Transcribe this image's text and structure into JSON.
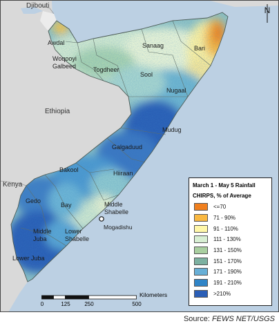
{
  "map": {
    "countries": [
      "Djibouti",
      "Ethiopia",
      "Kenya"
    ],
    "capital": "Mogadishu",
    "regions": [
      "Awdal",
      "Woqooyi Galbeed",
      "Togdheer",
      "Sanaag",
      "Bari",
      "Sool",
      "Nugaal",
      "Mudug",
      "Galgaduud",
      "Hiiraan",
      "Bakool",
      "Gedo",
      "Bay",
      "Middle Shabelle",
      "Lower Shabelle",
      "Middle Juba",
      "Lower Juba"
    ],
    "region_label_lines": {
      "woqooyi": [
        "Woqooyi",
        "Galbeed"
      ],
      "middle_shabelle": [
        "Middle",
        "Shabelle"
      ],
      "lower_shabelle": [
        "Lower",
        "Shabelle"
      ],
      "middle_juba": [
        "Middle",
        "Juba"
      ]
    }
  },
  "legend": {
    "title": "March 1 - May 5 Rainfall",
    "subtitle": "CHIRPS, % of Average",
    "classes": [
      {
        "label": "<=70",
        "color": "#f07f1e"
      },
      {
        "label": "71 - 90%",
        "color": "#f9b841"
      },
      {
        "label": "91 - 110%",
        "color": "#fff7a8"
      },
      {
        "label": "111 - 130%",
        "color": "#d8efd3"
      },
      {
        "label": "131 - 150%",
        "color": "#a9cfa0"
      },
      {
        "label": "151 - 170%",
        "color": "#7db1a1"
      },
      {
        "label": "171 - 190%",
        "color": "#68afd6"
      },
      {
        "label": "191 - 210%",
        "color": "#2f84c7"
      },
      {
        "label": ">210%",
        "color": "#2a5eb6"
      }
    ]
  },
  "scale": {
    "ticks": [
      "0",
      "125",
      "250",
      "500"
    ],
    "unit": "Kilometers"
  },
  "north_arrow": "N",
  "source": {
    "prefix": "Source: ",
    "org": "FEWS NET/USGS"
  }
}
